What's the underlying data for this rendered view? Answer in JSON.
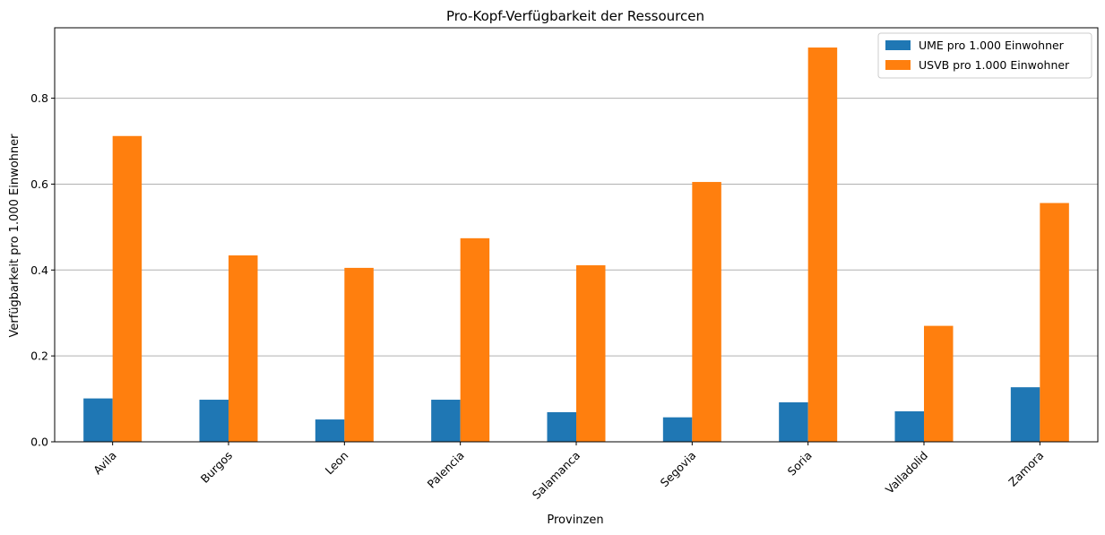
{
  "chart_data": {
    "type": "bar",
    "title": "Pro-Kopf-Verfügbarkeit der Ressourcen",
    "xlabel": "Provinzen",
    "ylabel": "Verfügbarkeit pro 1.000 Einwohner",
    "categories": [
      "Avila",
      "Burgos",
      "Leon",
      "Palencia",
      "Salamanca",
      "Segovia",
      "Soria",
      "Valladolid",
      "Zamora"
    ],
    "series": [
      {
        "name": "UME pro 1.000 Einwohner",
        "color": "#1f77b4",
        "values": [
          0.101,
          0.098,
          0.052,
          0.098,
          0.069,
          0.057,
          0.092,
          0.071,
          0.127
        ]
      },
      {
        "name": "USVB pro 1.000 Einwohner",
        "color": "#ff7f0e",
        "values": [
          0.712,
          0.434,
          0.405,
          0.474,
          0.411,
          0.605,
          0.918,
          0.27,
          0.556
        ]
      }
    ],
    "ylim": [
      0,
      0.964
    ],
    "yticks": [
      0.0,
      0.2,
      0.4,
      0.6,
      0.8
    ],
    "ytick_labels": [
      "0.0",
      "0.2",
      "0.4",
      "0.6",
      "0.8"
    ],
    "grid": "y",
    "legend": "top-right"
  }
}
